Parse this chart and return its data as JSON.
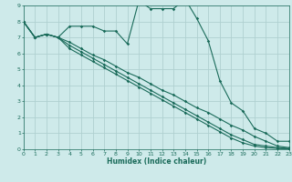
{
  "xlabel": "Humidex (Indice chaleur)",
  "bg_color": "#ceeaea",
  "grid_color": "#afd0d0",
  "line_color": "#1a6b5a",
  "xlim": [
    0,
    23
  ],
  "ylim": [
    0,
    9
  ],
  "xticks": [
    0,
    1,
    2,
    3,
    4,
    5,
    6,
    7,
    8,
    9,
    10,
    11,
    12,
    13,
    14,
    15,
    16,
    17,
    18,
    19,
    20,
    21,
    22,
    23
  ],
  "yticks": [
    0,
    1,
    2,
    3,
    4,
    5,
    6,
    7,
    8,
    9
  ],
  "curve1_x": [
    0,
    1,
    2,
    3,
    4,
    5,
    6,
    7,
    8,
    9,
    10,
    11,
    12,
    13,
    14,
    15,
    16,
    17,
    18,
    19,
    20,
    21,
    22,
    23
  ],
  "curve1_y": [
    8.0,
    7.0,
    7.2,
    7.0,
    7.7,
    7.7,
    7.7,
    7.4,
    7.4,
    6.6,
    9.3,
    8.8,
    8.8,
    8.8,
    9.4,
    8.2,
    6.8,
    4.3,
    2.9,
    2.4,
    1.3,
    1.0,
    0.5,
    0.5
  ],
  "curve2_x": [
    0,
    1,
    2,
    3,
    4,
    5,
    6,
    7,
    8,
    9,
    10,
    11,
    12,
    13,
    14,
    15,
    16,
    17,
    18,
    19,
    20,
    21,
    22,
    23
  ],
  "curve2_y": [
    8.0,
    7.0,
    7.2,
    7.0,
    6.7,
    6.3,
    5.9,
    5.6,
    5.2,
    4.8,
    4.5,
    4.1,
    3.7,
    3.4,
    3.0,
    2.6,
    2.3,
    1.9,
    1.5,
    1.2,
    0.8,
    0.5,
    0.2,
    0.1
  ],
  "curve3_x": [
    0,
    1,
    2,
    3,
    4,
    5,
    6,
    7,
    8,
    9,
    10,
    11,
    12,
    13,
    14,
    15,
    16,
    17,
    18,
    19,
    20,
    21,
    22,
    23
  ],
  "curve3_y": [
    8.0,
    7.0,
    7.2,
    7.0,
    6.5,
    6.1,
    5.7,
    5.3,
    4.9,
    4.5,
    4.1,
    3.7,
    3.3,
    2.9,
    2.5,
    2.1,
    1.7,
    1.3,
    0.9,
    0.6,
    0.3,
    0.2,
    0.1,
    0.05
  ],
  "curve4_x": [
    0,
    1,
    2,
    3,
    4,
    5,
    6,
    7,
    8,
    9,
    10,
    11,
    12,
    13,
    14,
    15,
    16,
    17,
    18,
    19,
    20,
    21,
    22,
    23
  ],
  "curve4_y": [
    8.0,
    7.0,
    7.2,
    7.0,
    6.3,
    5.9,
    5.5,
    5.1,
    4.7,
    4.3,
    3.9,
    3.5,
    3.1,
    2.7,
    2.3,
    1.9,
    1.5,
    1.1,
    0.7,
    0.4,
    0.2,
    0.1,
    0.05,
    0.02
  ]
}
